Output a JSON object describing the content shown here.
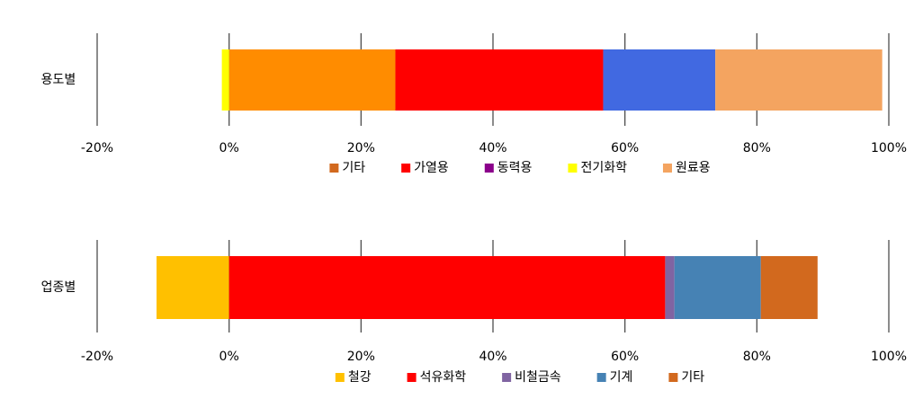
{
  "chart_data": [
    {
      "type": "stacked_bar",
      "categories": [
        "용도별"
      ],
      "xlim": [
        -20,
        100
      ],
      "xticks": [
        {
          "value": -20,
          "label": "-20%"
        },
        {
          "value": 0,
          "label": "0%"
        },
        {
          "value": 20,
          "label": "20%"
        },
        {
          "value": 40,
          "label": "40%"
        },
        {
          "value": 60,
          "label": "60%"
        },
        {
          "value": 80,
          "label": "80%"
        },
        {
          "value": 100,
          "label": "100%"
        }
      ],
      "series": [
        {
          "name": "기타",
          "color": "#ff8c00",
          "legend_color": "#d2691e",
          "values": [
            25.2
          ]
        },
        {
          "name": "가열용",
          "color": "#ff0000",
          "legend_color": "#ff0000",
          "values": [
            31.5
          ]
        },
        {
          "name": "동력용",
          "color": "#4169e1",
          "legend_color": "#8b008b",
          "values": [
            17
          ]
        },
        {
          "name": "전기화학",
          "color": "#ffff00",
          "legend_color": "#ffff00",
          "values": [
            -1.1
          ]
        },
        {
          "name": "원료용",
          "color": "#f4a460",
          "legend_color": "#f4a460",
          "values": [
            25.3
          ]
        }
      ]
    },
    {
      "type": "stacked_bar",
      "categories": [
        "업종별"
      ],
      "xlim": [
        -20,
        100
      ],
      "xticks": [
        {
          "value": -20,
          "label": "-20%"
        },
        {
          "value": 0,
          "label": "0%"
        },
        {
          "value": 20,
          "label": "20%"
        },
        {
          "value": 40,
          "label": "40%"
        },
        {
          "value": 60,
          "label": "60%"
        },
        {
          "value": 80,
          "label": "80%"
        },
        {
          "value": 100,
          "label": "100%"
        }
      ],
      "series": [
        {
          "name": "철강",
          "color": "#ffc000",
          "legend_color": "#ffc000",
          "values": [
            -11
          ]
        },
        {
          "name": "석유화학",
          "color": "#ff0000",
          "legend_color": "#ff0000",
          "values": [
            66.1
          ]
        },
        {
          "name": "비철금속",
          "color": "#8064a2",
          "legend_color": "#8064a2",
          "values": [
            1.4
          ]
        },
        {
          "name": "기계",
          "color": "#4682b4",
          "legend_color": "#4682b4",
          "values": [
            13.1
          ]
        },
        {
          "name": "기타",
          "color": "#d2691e",
          "legend_color": "#d2691e",
          "values": [
            8.6
          ]
        }
      ]
    }
  ]
}
